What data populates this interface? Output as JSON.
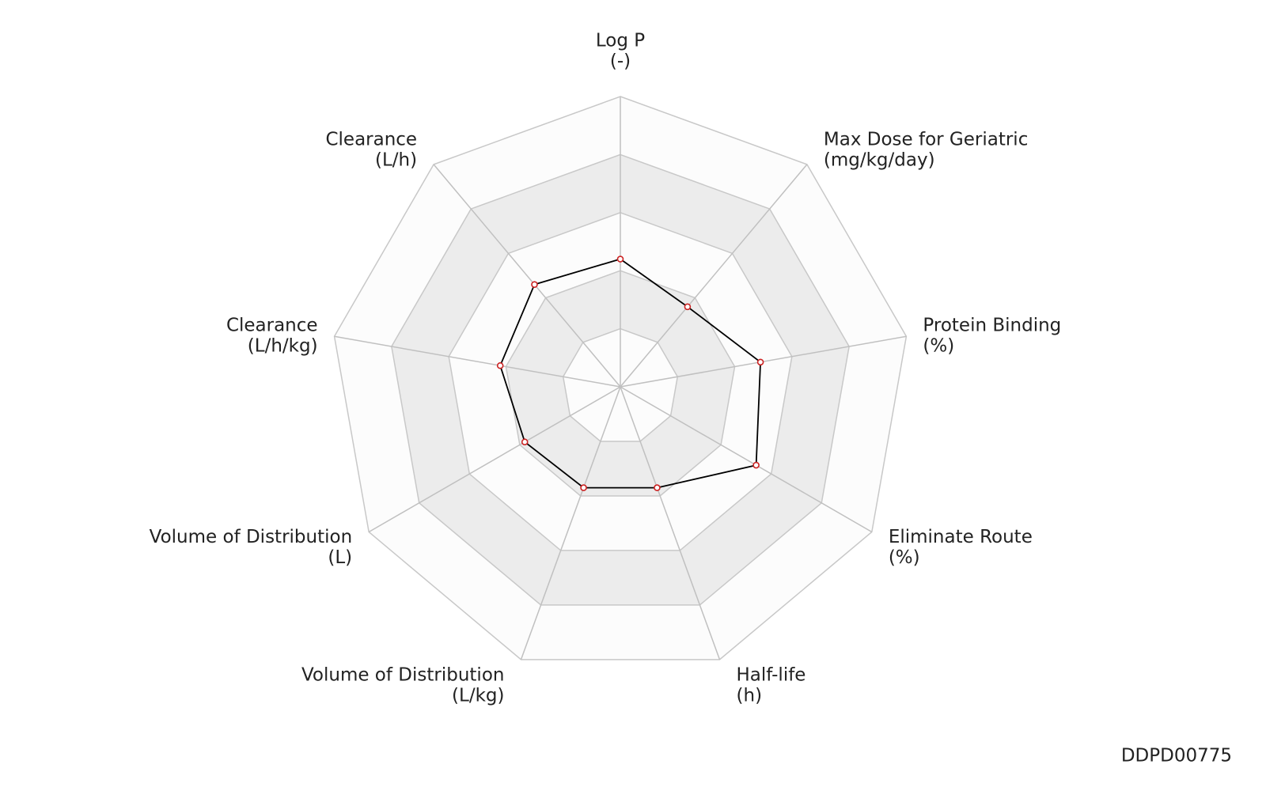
{
  "chart_data": {
    "type": "radar",
    "categories": [
      "Log P",
      "Max Dose for Geriatric",
      "Protein Binding",
      "Eliminate Route",
      "Half-life",
      "Volume of Distribution",
      "Volume of Distribution",
      "Clearance",
      "Clearance"
    ],
    "units": [
      "(-)",
      "(mg/kg/day)",
      "(%)",
      "(%)",
      "(h)",
      "(L/kg)",
      "(L)",
      "(L/h/kg)",
      "(L/h)"
    ],
    "values": [
      0.44,
      0.36,
      0.49,
      0.54,
      0.37,
      0.37,
      0.38,
      0.42,
      0.46
    ],
    "rlim": [
      0,
      1
    ],
    "rticks": [
      0.2,
      0.4,
      0.6,
      0.8,
      1.0
    ],
    "line_color": "#000000",
    "marker_color": "#cc2222",
    "footer": "DDPD00775"
  }
}
